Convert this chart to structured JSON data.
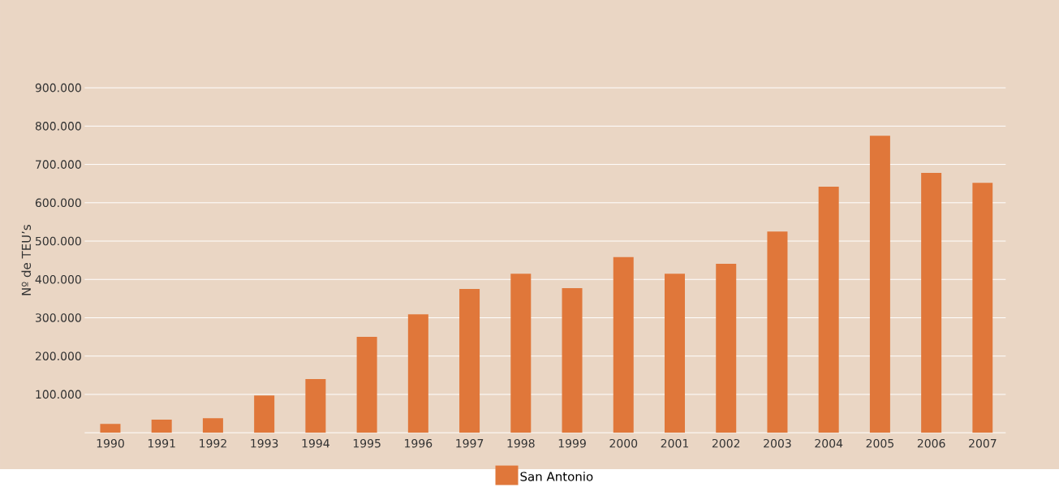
{
  "chart_data": {
    "type": "bar",
    "ylabel": "Nº de TEU’s",
    "categories": [
      "1990",
      "1991",
      "1992",
      "1993",
      "1994",
      "1995",
      "1996",
      "1997",
      "1998",
      "1999",
      "2000",
      "2001",
      "2002",
      "2003",
      "2004",
      "2005",
      "2006",
      "2007"
    ],
    "series": [
      {
        "name": "San Antonio",
        "color": "#e0773a",
        "values": [
          23000,
          34000,
          38000,
          97000,
          140000,
          250000,
          309000,
          375000,
          415000,
          377000,
          458000,
          415000,
          441000,
          525000,
          642000,
          775000,
          678000,
          652000
        ]
      }
    ],
    "ylim": [
      0,
      900000
    ],
    "yticks": [
      {
        "value": 100000,
        "label": "100.000"
      },
      {
        "value": 200000,
        "label": "200.000"
      },
      {
        "value": 300000,
        "label": "300.000"
      },
      {
        "value": 400000,
        "label": "400.000"
      },
      {
        "value": 500000,
        "label": "500.000"
      },
      {
        "value": 600000,
        "label": "600.000"
      },
      {
        "value": 700000,
        "label": "700.000"
      },
      {
        "value": 800000,
        "label": "800.000"
      },
      {
        "value": 900000,
        "label": "900.000"
      }
    ],
    "grid": "y",
    "legend": "bottom"
  }
}
